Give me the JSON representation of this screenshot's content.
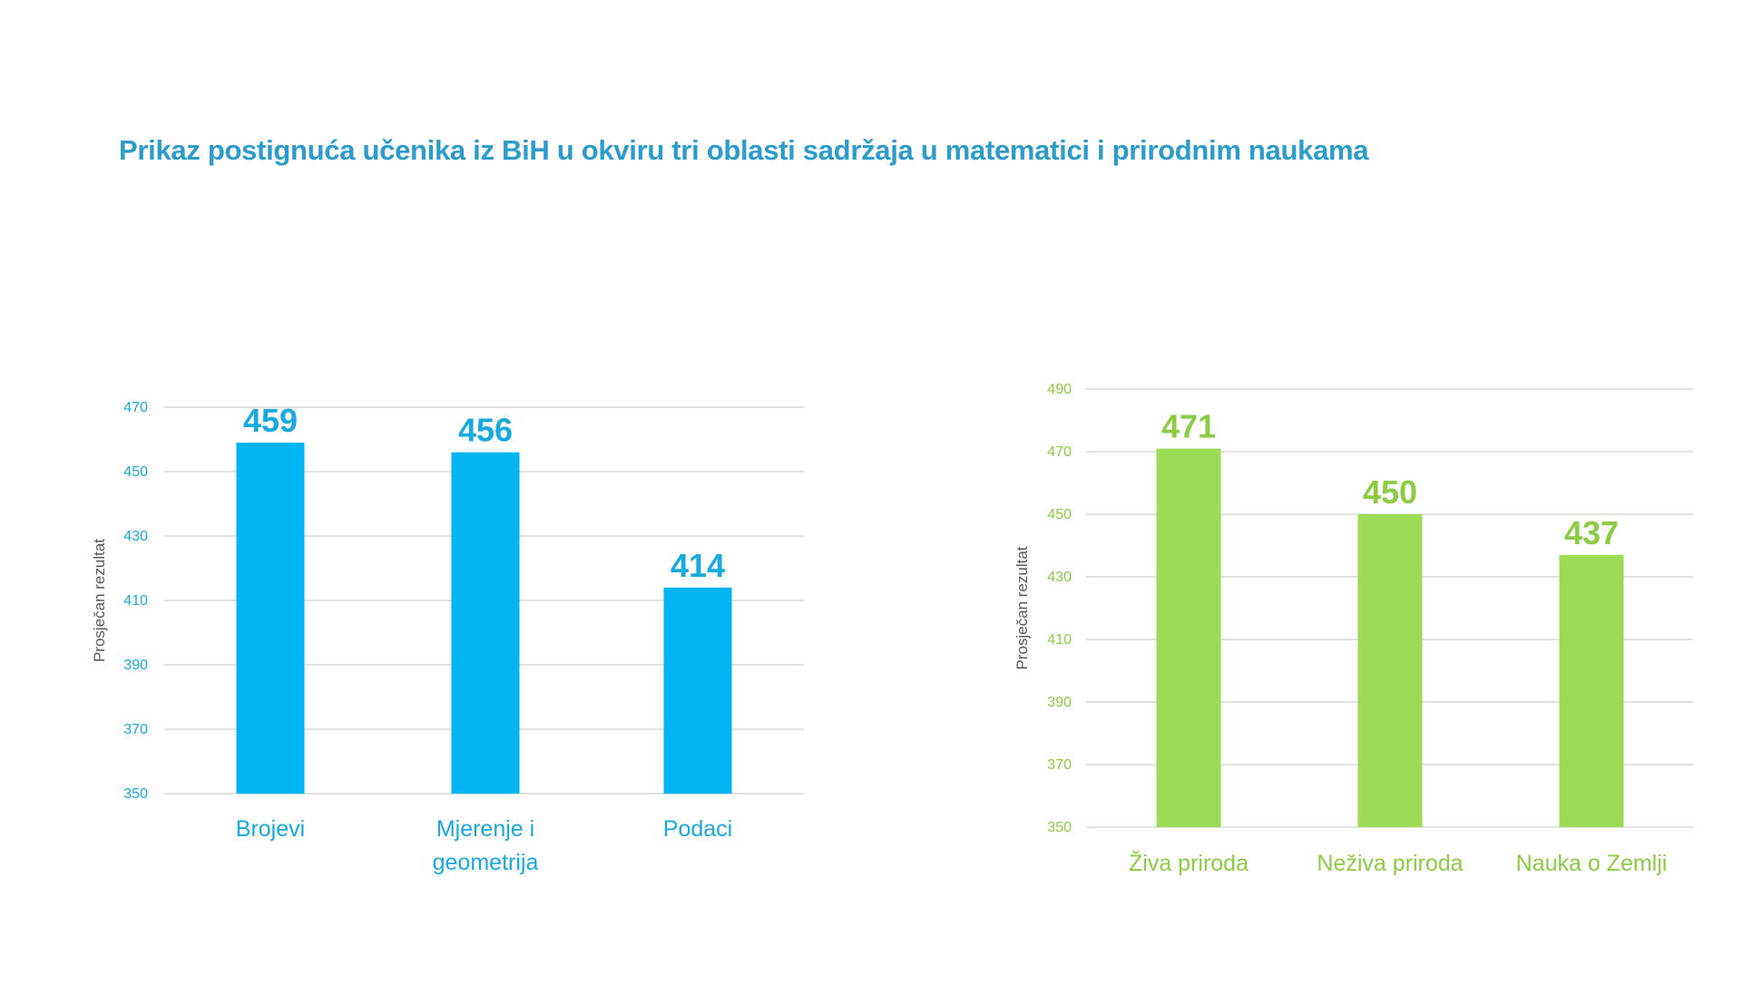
{
  "title": "Prikaz postignuća učenika iz BiH u okviru tri oblasti sadržaja u matematici i prirodnim naukama",
  "colors": {
    "math_bar": "#00B5F2",
    "math_text": "#17A9E0",
    "science_bar": "#9BDB55",
    "science_text": "#8CCB44",
    "grid": "#D9D9D9",
    "axis_title": "#595959"
  },
  "chart_data": [
    {
      "type": "bar",
      "title": "",
      "xlabel": "",
      "ylabel": "Prosječan rezultat",
      "categories": [
        [
          "Brojevi"
        ],
        [
          "Mjerenje i",
          "geometrija"
        ],
        [
          "Podaci"
        ]
      ],
      "values": [
        459,
        456,
        414
      ],
      "ylim": [
        350,
        470
      ],
      "yticks": [
        350,
        370,
        390,
        410,
        430,
        450,
        470
      ],
      "grid": true
    },
    {
      "type": "bar",
      "title": "",
      "xlabel": "",
      "ylabel": "Prosječan rezultat",
      "categories": [
        [
          "Živa priroda"
        ],
        [
          "Neživa priroda"
        ],
        [
          "Nauka o Zemlji"
        ]
      ],
      "values": [
        471,
        450,
        437
      ],
      "ylim": [
        350,
        490
      ],
      "yticks": [
        350,
        370,
        390,
        410,
        430,
        450,
        470,
        490
      ],
      "grid": true
    }
  ]
}
